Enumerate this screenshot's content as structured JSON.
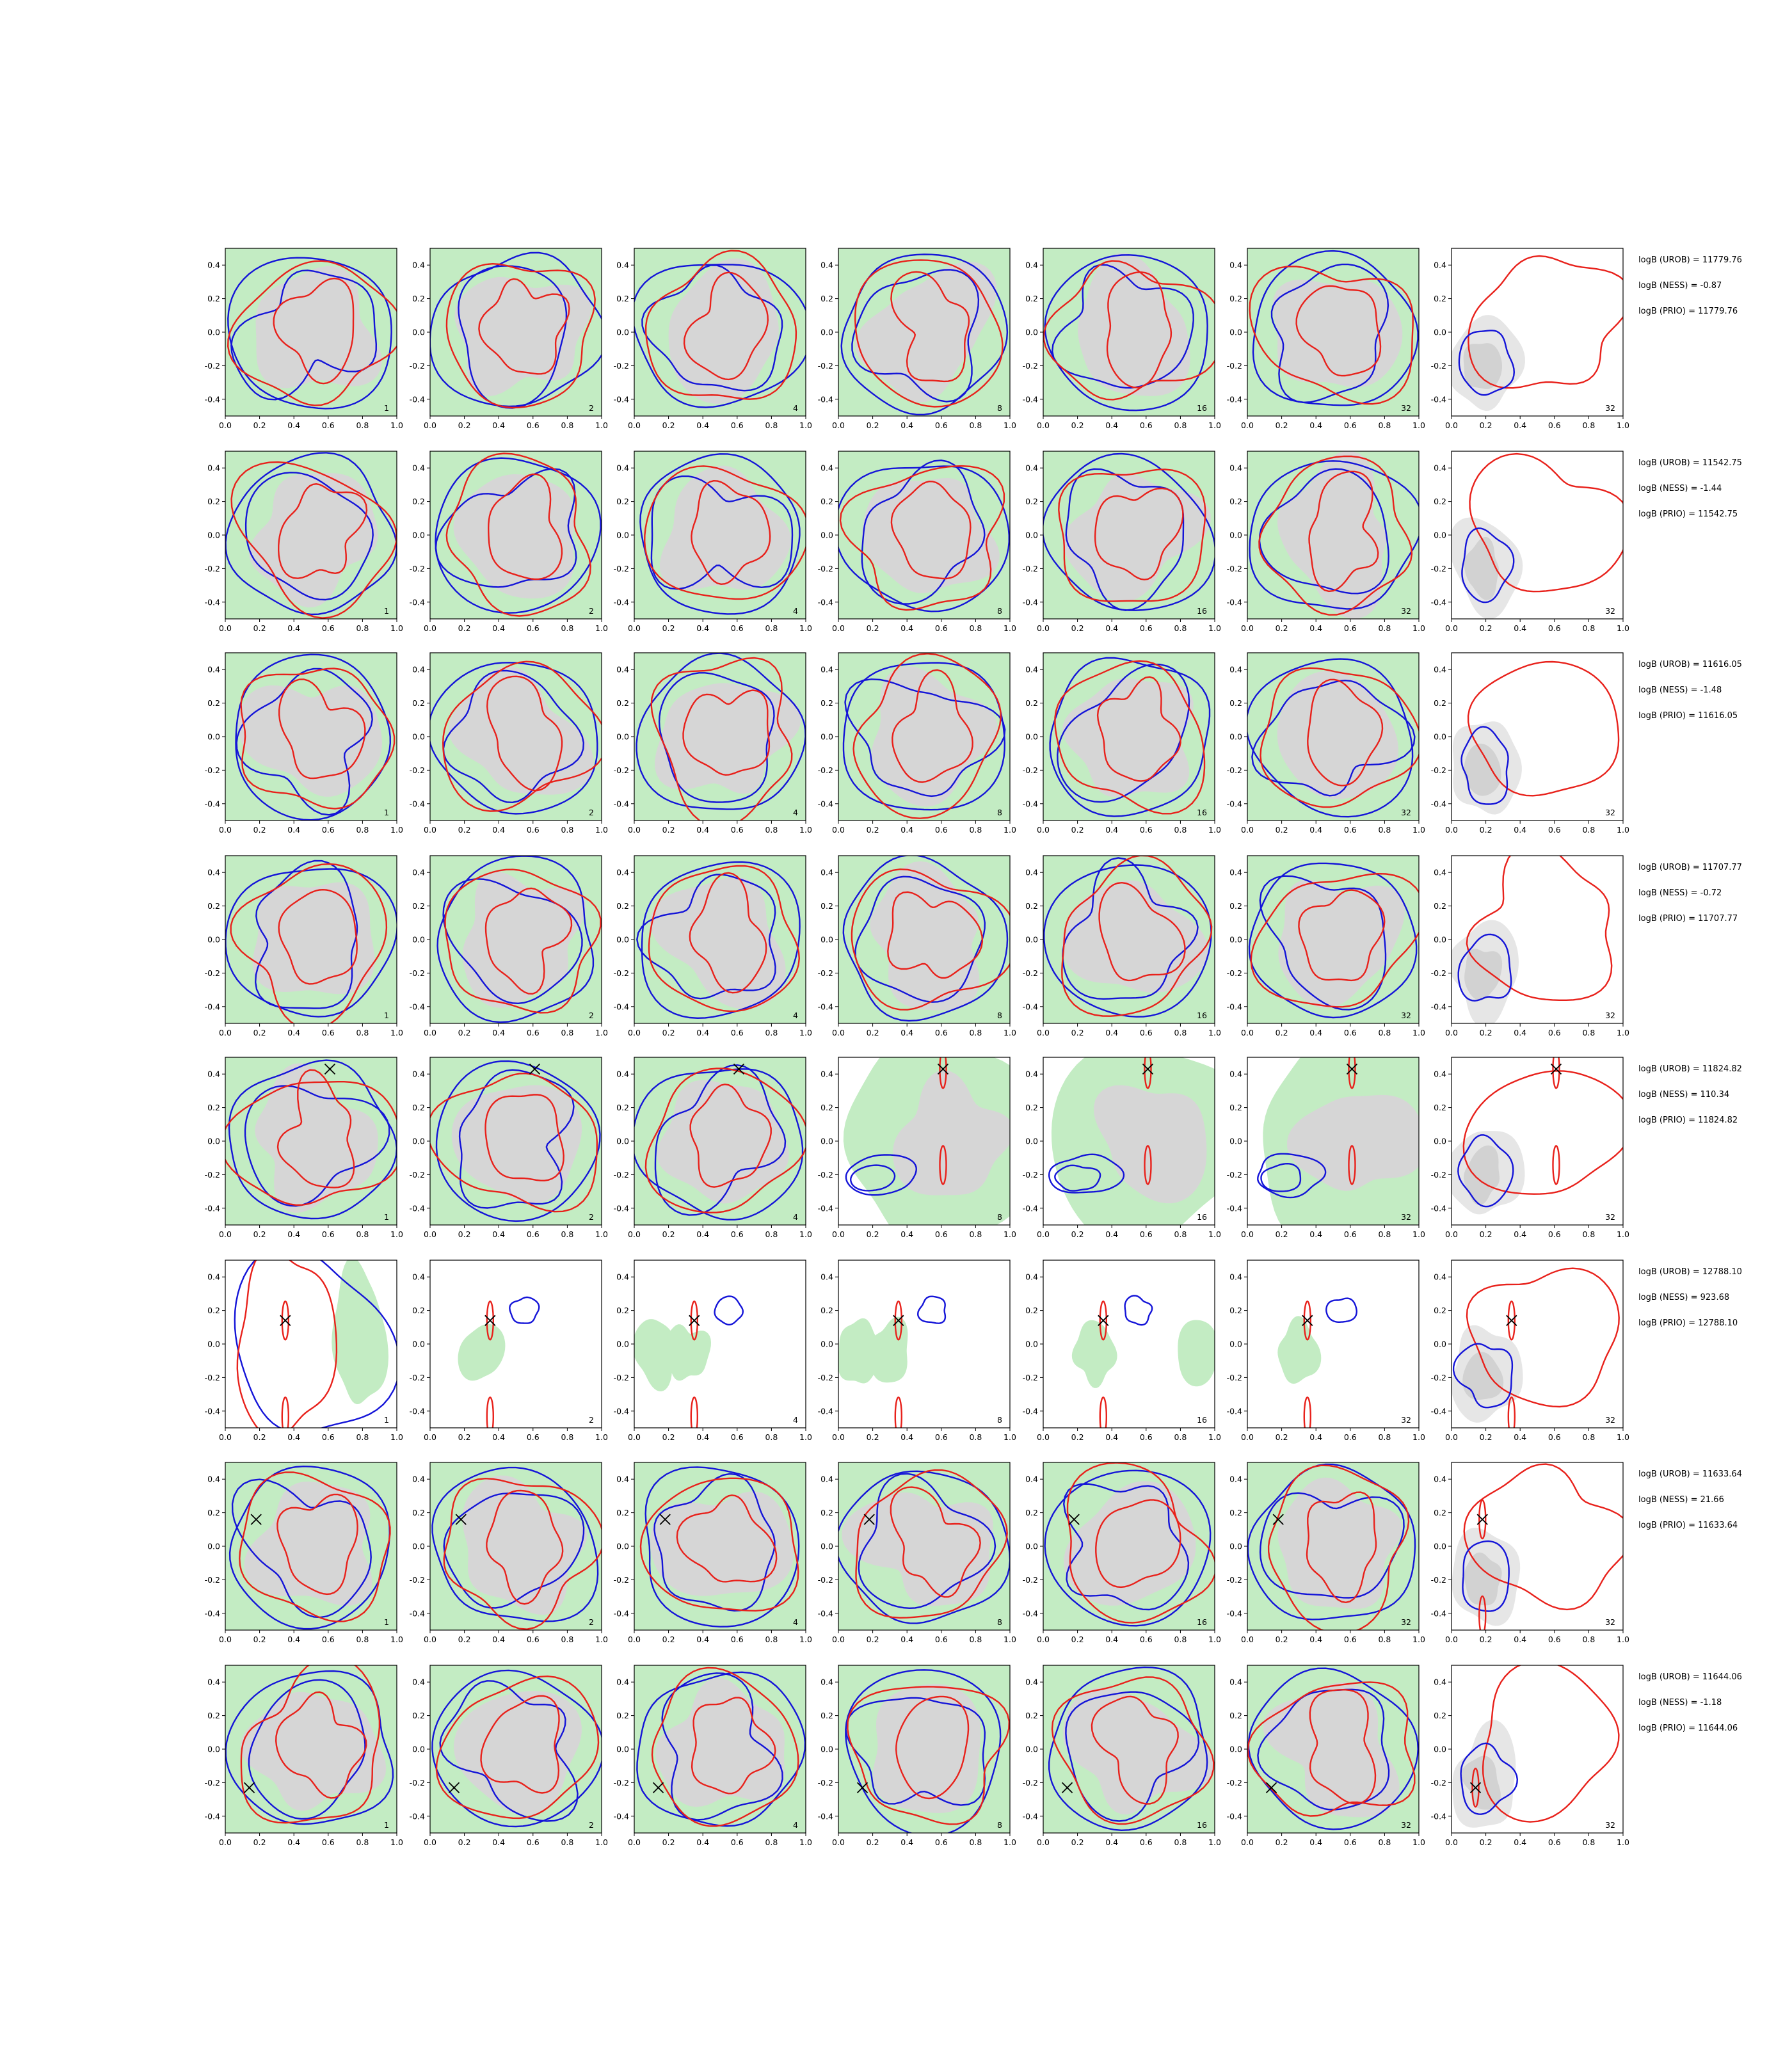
{
  "figure": {
    "columns": [
      "1",
      "2",
      "4",
      "8",
      "16",
      "32",
      "32"
    ],
    "stats_labels": {
      "urob": "logB (UROB) = ",
      "ness": "logB (NESS) = ",
      "prio": "logB (PRIO) = "
    }
  },
  "chart_data": {
    "type": "contour",
    "title": "",
    "xlabel": "",
    "ylabel": "",
    "xlim": [
      0.0,
      1.0
    ],
    "ylim": [
      -0.5,
      0.5
    ],
    "xticks": [
      "0.0",
      "0.2",
      "0.4",
      "0.6",
      "0.8",
      "1.0"
    ],
    "yticks": [
      "0.4",
      "0.2",
      "0.0",
      "-0.2",
      "-0.4"
    ],
    "series_colors": {
      "red": "#e8211b",
      "blue": "#1414d8",
      "green_fill": "#c3ecc3",
      "grey_fill": "#d6d6d6",
      "marker": "#000000"
    },
    "rows": [
      {
        "stats": {
          "urob": "11779.76",
          "ness": "-0.87",
          "prio": "11779.76"
        },
        "marker": null
      },
      {
        "stats": {
          "urob": "11542.75",
          "ness": "-1.44",
          "prio": "11542.75"
        },
        "marker": null
      },
      {
        "stats": {
          "urob": "11616.05",
          "ness": "-1.48",
          "prio": "11616.05"
        },
        "marker": null
      },
      {
        "stats": {
          "urob": "11707.77",
          "ness": "-0.72",
          "prio": "11707.77"
        },
        "marker": null
      },
      {
        "stats": {
          "urob": "11824.82",
          "ness": "110.34",
          "prio": "11824.82"
        },
        "marker": [
          0.61,
          0.43
        ]
      },
      {
        "stats": {
          "urob": "12788.10",
          "ness": "923.68",
          "prio": "12788.10"
        },
        "marker": [
          0.35,
          0.14
        ]
      },
      {
        "stats": {
          "urob": "11633.64",
          "ness": "21.66",
          "prio": "11633.64"
        },
        "marker": [
          0.18,
          0.16
        ]
      },
      {
        "stats": {
          "urob": "11644.06",
          "ness": "-1.18",
          "prio": "11644.06"
        },
        "marker": [
          0.14,
          -0.23
        ]
      }
    ]
  }
}
